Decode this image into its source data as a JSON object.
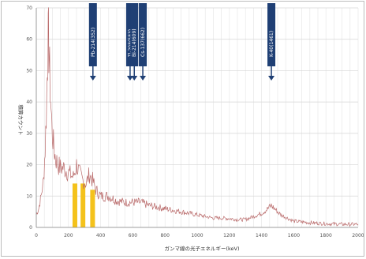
{
  "chart_data": {
    "type": "line",
    "xlabel": "ガンマ線の光子エネルギー(keV)",
    "ylabel": "積算カウント",
    "xlim": [
      0,
      2000
    ],
    "ylim": [
      0,
      70
    ],
    "x_ticks": [
      "0",
      "200",
      "400",
      "600",
      "800",
      "1000",
      "1200",
      "1400",
      "1600",
      "1800",
      "2000"
    ],
    "y_ticks": [
      "0",
      "10",
      "20",
      "30",
      "40",
      "50",
      "60",
      "70"
    ],
    "grid": true,
    "series": [
      {
        "color": "#b96a6a",
        "points": [
          [
            0,
            4
          ],
          [
            15,
            6
          ],
          [
            30,
            10
          ],
          [
            45,
            15
          ],
          [
            55,
            25
          ],
          [
            62,
            36
          ],
          [
            68,
            48
          ],
          [
            72,
            58
          ],
          [
            76,
            60
          ],
          [
            80,
            54
          ],
          [
            86,
            45
          ],
          [
            92,
            37
          ],
          [
            100,
            30
          ],
          [
            110,
            25
          ],
          [
            120,
            22
          ],
          [
            135,
            20
          ],
          [
            150,
            19
          ],
          [
            170,
            19
          ],
          [
            190,
            18
          ],
          [
            210,
            17
          ],
          [
            230,
            16
          ],
          [
            250,
            20
          ],
          [
            270,
            17
          ],
          [
            290,
            15
          ],
          [
            310,
            14
          ],
          [
            330,
            17
          ],
          [
            350,
            15
          ],
          [
            370,
            12
          ],
          [
            400,
            10
          ],
          [
            450,
            10
          ],
          [
            500,
            8.5
          ],
          [
            550,
            8
          ],
          [
            600,
            8
          ],
          [
            650,
            8
          ],
          [
            700,
            7
          ],
          [
            750,
            6.5
          ],
          [
            800,
            6
          ],
          [
            850,
            5.5
          ],
          [
            900,
            5
          ],
          [
            950,
            4.5
          ],
          [
            1000,
            4
          ],
          [
            1050,
            3.5
          ],
          [
            1100,
            3
          ],
          [
            1150,
            3
          ],
          [
            1200,
            2.8
          ],
          [
            1250,
            2.5
          ],
          [
            1300,
            2.5
          ],
          [
            1350,
            3.5
          ],
          [
            1400,
            4.5
          ],
          [
            1440,
            6
          ],
          [
            1460,
            7
          ],
          [
            1480,
            6
          ],
          [
            1520,
            4
          ],
          [
            1600,
            2
          ],
          [
            1700,
            1.5
          ],
          [
            1800,
            1.2
          ],
          [
            1900,
            1
          ],
          [
            2000,
            1
          ]
        ]
      }
    ],
    "highlight_bars": {
      "color": "#f4c21b",
      "x": [
        240,
        290,
        350
      ],
      "heights": [
        14,
        14,
        12
      ]
    },
    "markers": [
      {
        "x": 352,
        "label": "Pb-214(352)",
        "color": "#1f3f74"
      },
      {
        "x": 583,
        "label": "Tl-208(583)",
        "color": "#1f3f74"
      },
      {
        "x": 609,
        "label": "Bi-214(609)",
        "color": "#1f3f74"
      },
      {
        "x": 662,
        "label": "Cs-137(662)",
        "color": "#1f3f74"
      },
      {
        "x": 1461,
        "label": "K-40(1461)",
        "color": "#1f3f74"
      }
    ]
  }
}
